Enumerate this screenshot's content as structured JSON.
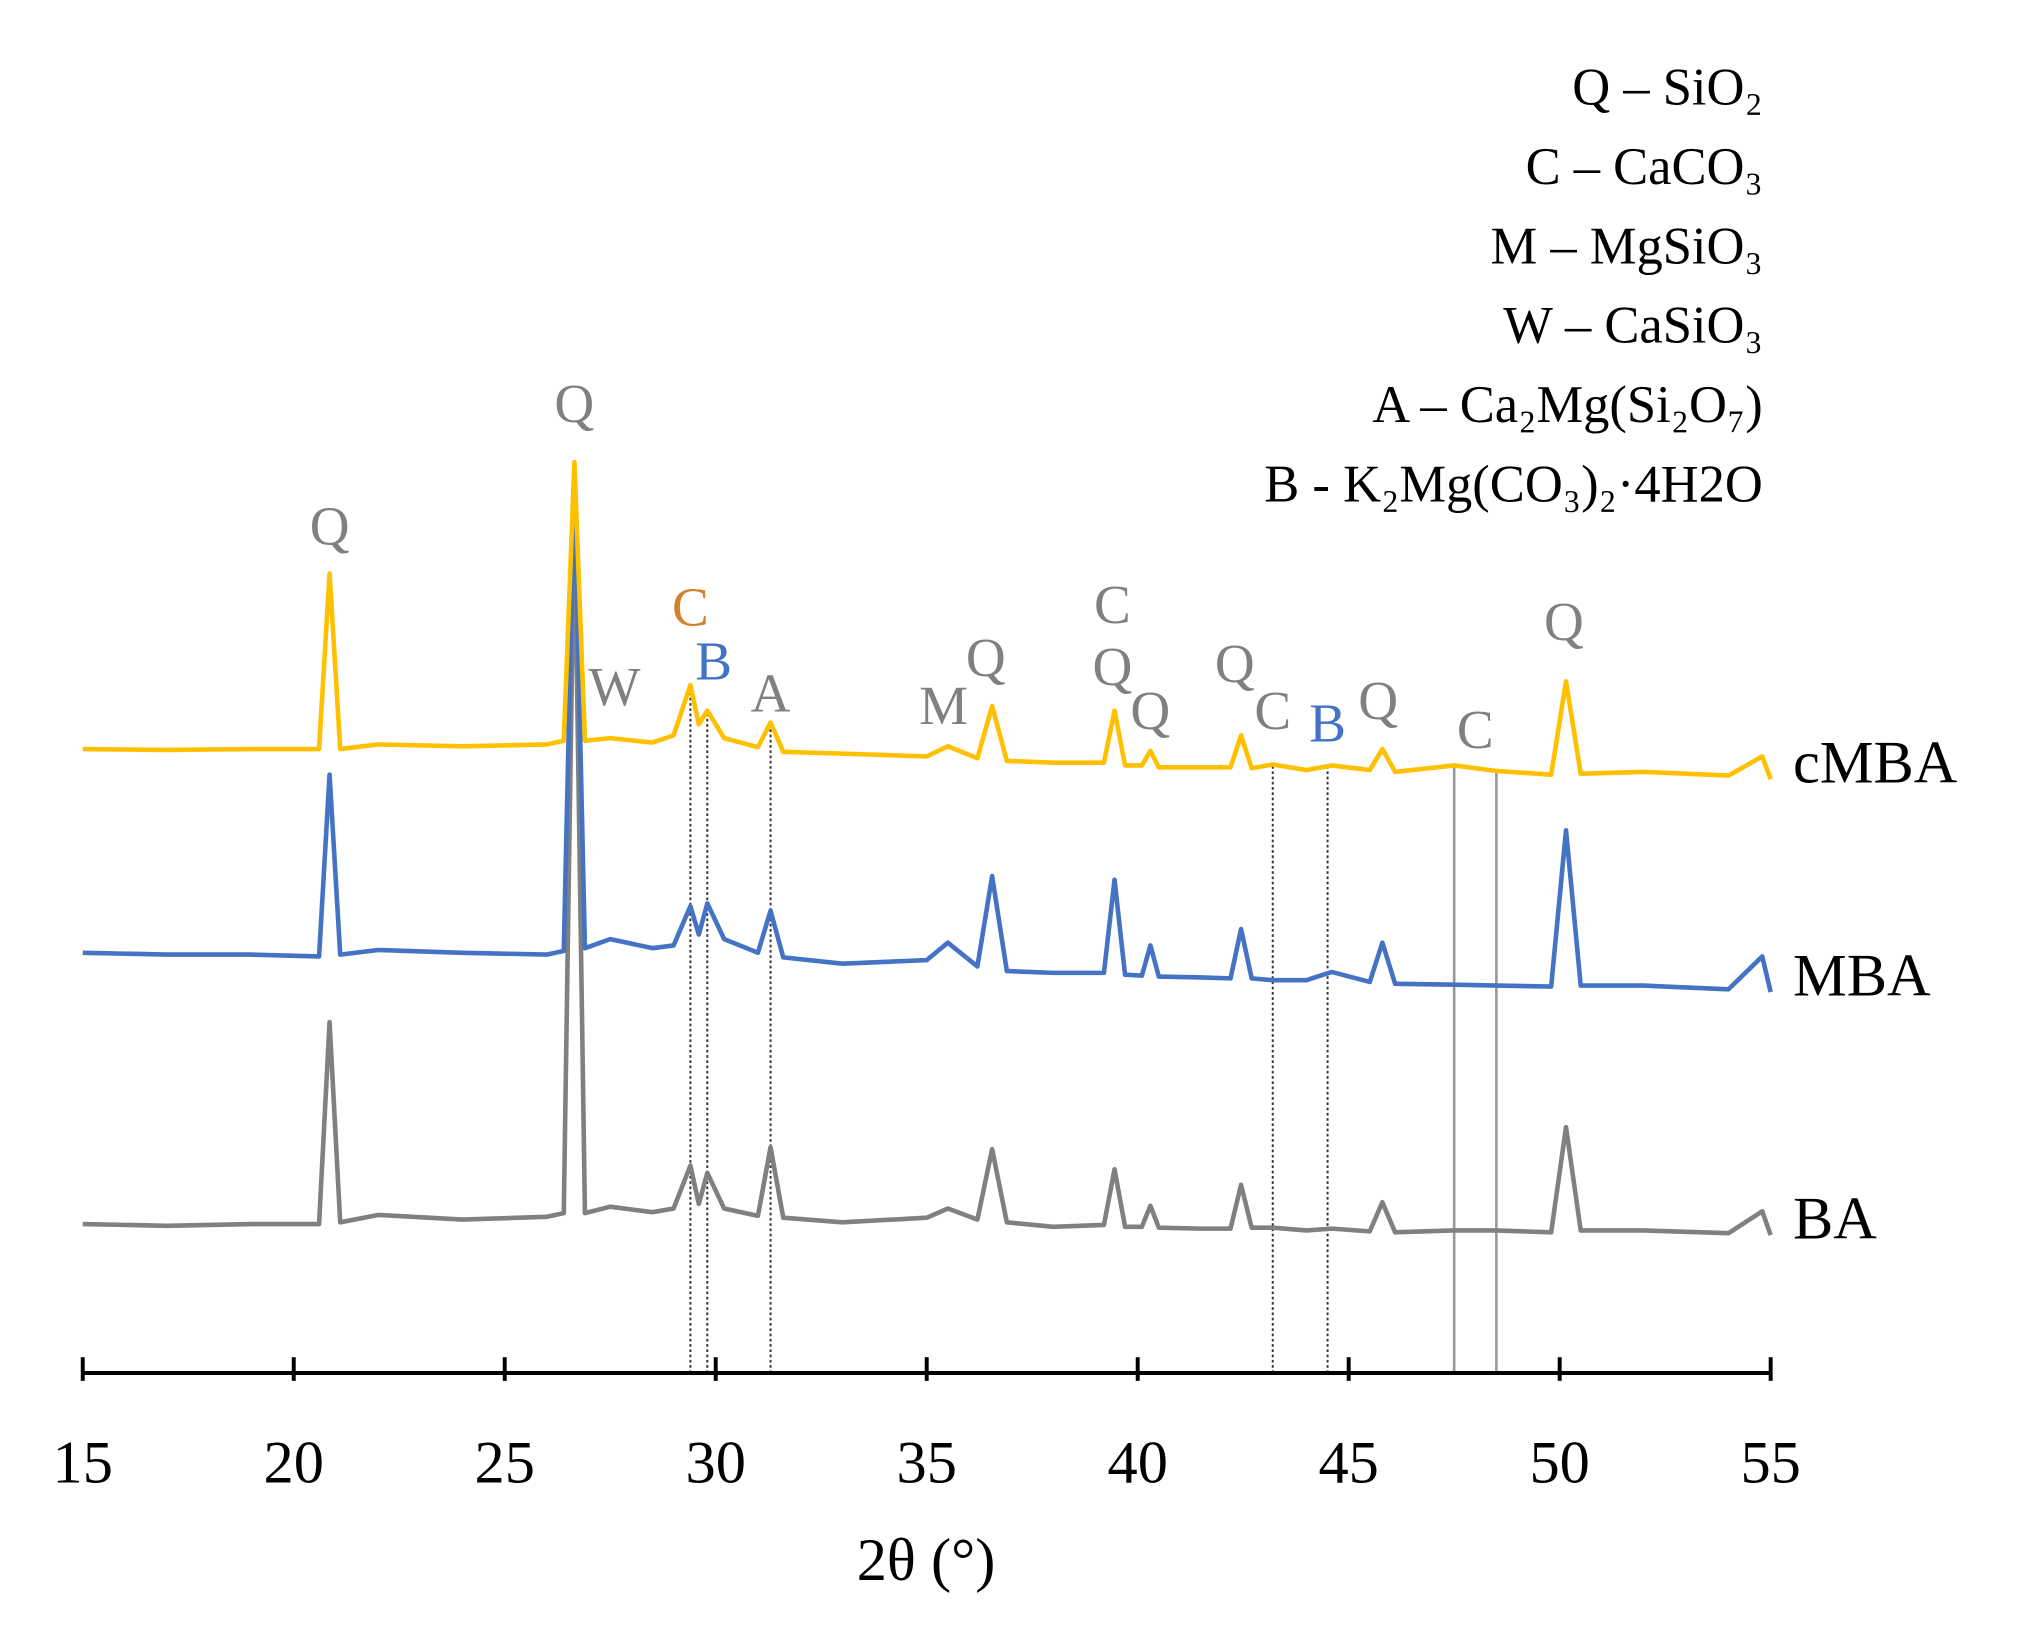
{
  "chart_data": {
    "type": "line",
    "x_label": "2θ (°)",
    "xlim": [
      15,
      55
    ],
    "xticks": [
      15,
      20,
      25,
      30,
      35,
      40,
      45,
      50,
      55
    ],
    "ylim": [
      0,
      110
    ],
    "grid": false,
    "x": [
      15,
      17,
      19,
      20.6,
      20.85,
      21.1,
      22,
      24,
      26,
      26.4,
      26.65,
      26.9,
      27.5,
      28.5,
      29.0,
      29.4,
      29.6,
      29.8,
      30.2,
      31.0,
      31.3,
      31.6,
      33,
      35,
      35.5,
      36.2,
      36.55,
      36.9,
      38,
      39.2,
      39.45,
      39.7,
      40.1,
      40.3,
      40.5,
      41.5,
      42.2,
      42.45,
      42.7,
      43.2,
      44.0,
      44.6,
      45.5,
      45.8,
      46.1,
      47.5,
      48.5,
      49.8,
      50.15,
      50.5,
      52,
      54,
      54.8,
      55
    ],
    "series": [
      {
        "name": "BA",
        "color": "#808080",
        "values": [
          16.3,
          16.1,
          16.3,
          16.3,
          38.4,
          16.5,
          17.3,
          16.8,
          17.1,
          17.5,
          95,
          17.5,
          18.2,
          17.6,
          18.0,
          22.7,
          18.5,
          21.9,
          18.0,
          17.2,
          24.7,
          17.0,
          16.5,
          17.0,
          18.0,
          16.8,
          24.5,
          16.5,
          16.0,
          16.2,
          22.3,
          16.0,
          16.0,
          18.3,
          15.9,
          15.8,
          15.8,
          20.6,
          15.9,
          15.9,
          15.6,
          15.8,
          15.5,
          18.7,
          15.4,
          15.6,
          15.6,
          15.4,
          26.9,
          15.6,
          15.6,
          15.3,
          17.7,
          15.1
        ]
      },
      {
        "name": "MBA",
        "color": "#4472c4",
        "values": [
          46.0,
          45.8,
          45.8,
          45.6,
          65.5,
          45.8,
          46.3,
          46.0,
          45.8,
          46.2,
          98,
          46.5,
          47.5,
          46.5,
          46.8,
          51.1,
          48.0,
          51.4,
          47.5,
          46.0,
          50.6,
          45.5,
          44.8,
          45.2,
          47.1,
          44.5,
          54.4,
          44.0,
          43.8,
          43.8,
          54.0,
          43.6,
          43.5,
          46.8,
          43.4,
          43.3,
          43.2,
          48.6,
          43.2,
          43.0,
          43.0,
          43.9,
          42.8,
          47.1,
          42.6,
          42.5,
          42.4,
          42.3,
          59.4,
          42.4,
          42.4,
          42.0,
          45.6,
          41.7
        ]
      },
      {
        "name": "cMBA",
        "color": "#ffc000",
        "values": [
          68.3,
          68.2,
          68.3,
          68.3,
          87.5,
          68.3,
          68.8,
          68.6,
          68.8,
          69.2,
          99.7,
          69.2,
          69.5,
          69.0,
          69.8,
          75.3,
          71.0,
          72.5,
          69.5,
          68.5,
          71.2,
          68.0,
          67.8,
          67.5,
          68.6,
          67.3,
          73.0,
          67.0,
          66.8,
          66.8,
          72.5,
          66.5,
          66.5,
          68.1,
          66.3,
          66.3,
          66.3,
          69.8,
          66.2,
          66.6,
          66.0,
          66.5,
          66.0,
          68.3,
          65.8,
          66.5,
          65.9,
          65.5,
          75.7,
          65.6,
          65.8,
          65.4,
          67.5,
          65.0
        ]
      }
    ],
    "reference_lines": [
      {
        "x": 29.4,
        "style": "dotted"
      },
      {
        "x": 29.8,
        "style": "dotted"
      },
      {
        "x": 31.3,
        "style": "dotted"
      },
      {
        "x": 43.2,
        "style": "dotted"
      },
      {
        "x": 44.5,
        "style": "dotted"
      },
      {
        "x": 47.5,
        "style": "solid"
      },
      {
        "x": 48.5,
        "style": "solid"
      }
    ],
    "annotations": [
      {
        "text": "Q",
        "x": 20.85,
        "y": 92.1,
        "color": "#808080"
      },
      {
        "text": "Q",
        "x": 26.65,
        "y": 105.5,
        "color": "#808080"
      },
      {
        "text": "W",
        "x": 27.6,
        "y": 74.5,
        "color": "#808080"
      },
      {
        "text": "C",
        "x": 29.4,
        "y": 83.2,
        "color": "#d4822a"
      },
      {
        "text": "B",
        "x": 29.95,
        "y": 77.3,
        "color": "#4472c4"
      },
      {
        "text": "A",
        "x": 31.3,
        "y": 73.8,
        "color": "#808080"
      },
      {
        "text": "M",
        "x": 35.4,
        "y": 72.4,
        "color": "#808080"
      },
      {
        "text": "Q",
        "x": 36.4,
        "y": 77.7,
        "color": "#808080"
      },
      {
        "text": "C",
        "x": 39.4,
        "y": 83.5,
        "color": "#808080"
      },
      {
        "text": "Q",
        "x": 39.4,
        "y": 76.7,
        "color": "#808080"
      },
      {
        "text": "Q",
        "x": 40.3,
        "y": 71.9,
        "color": "#808080"
      },
      {
        "text": "Q",
        "x": 42.3,
        "y": 77.0,
        "color": "#808080"
      },
      {
        "text": "C",
        "x": 43.2,
        "y": 71.9,
        "color": "#808080"
      },
      {
        "text": "B",
        "x": 44.5,
        "y": 70.5,
        "color": "#4472c4"
      },
      {
        "text": "Q",
        "x": 45.7,
        "y": 73.0,
        "color": "#808080"
      },
      {
        "text": "C",
        "x": 48.0,
        "y": 69.8,
        "color": "#808080"
      },
      {
        "text": "Q",
        "x": 50.1,
        "y": 81.6,
        "color": "#808080"
      }
    ],
    "phase_key": [
      "Q – SiO₂",
      "C – CaCO₃",
      "M – MgSiO₃",
      "W – CaSiO₃",
      "A – Ca₂Mg(Si₂O₇)",
      "B - K₂Mg(CO₃)₂·4H2O"
    ]
  }
}
